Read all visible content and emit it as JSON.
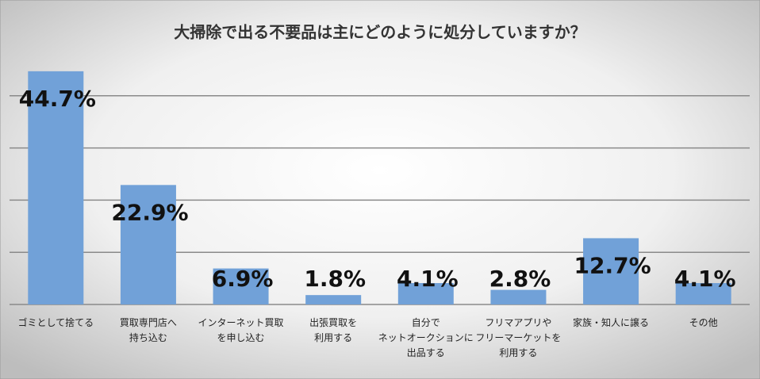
{
  "chart_data": {
    "type": "bar",
    "title": "大掃除で出る不要品は主にどのように処分していますか？",
    "categories": [
      "ゴミとして捨てる",
      "買取専門店へ\n持ち込む",
      "インターネット買取\nを申し込む",
      "出張買取を\n利用する",
      "自分で\nネットオークションに\n出品する",
      "フリマアプリや\nフリーマーケットを\n利用する",
      "家族・知人に譲る",
      "その他"
    ],
    "values": [
      44.7,
      22.9,
      6.9,
      1.8,
      4.1,
      2.8,
      12.7,
      4.1
    ],
    "value_labels": [
      "44.7%",
      "22.9%",
      "6.9%",
      "1.8%",
      "4.1%",
      "2.8%",
      "12.7%",
      "4.1%"
    ],
    "color": "#71a1d8",
    "ylim": [
      0,
      50
    ],
    "yticks": [
      0,
      10,
      20,
      30,
      40
    ],
    "grid": true
  }
}
